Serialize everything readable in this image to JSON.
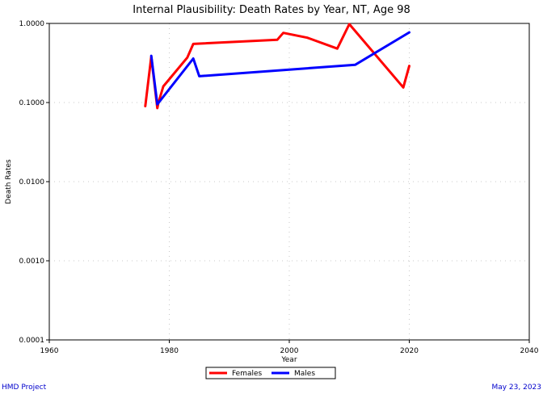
{
  "chart_data": {
    "type": "line",
    "title": "Internal Plausibility: Death Rates by Year, NT, Age 98",
    "xlabel": "Year",
    "ylabel": "Death Rates",
    "x_ticks": [
      "1960",
      "1980",
      "2000",
      "2020",
      "2040"
    ],
    "x_tick_values": [
      1960,
      1980,
      2000,
      2020,
      2040
    ],
    "y_ticks": [
      "0.0001",
      "0.0010",
      "0.0100",
      "0.1000",
      "1.0000"
    ],
    "y_tick_values": [
      0.0001,
      0.001,
      0.01,
      0.1,
      1.0
    ],
    "xlim": [
      1960,
      2040
    ],
    "ylim": [
      0.0001,
      1.0
    ],
    "y_scale": "log",
    "grid": true,
    "legend_position": "bottom-center",
    "series": [
      {
        "name": "Females",
        "color": "#ff0000",
        "x": [
          1976,
          1977,
          1978,
          1978.2,
          1979,
          1983,
          1984,
          1998,
          1999,
          2003,
          2008,
          2010,
          2019,
          2020
        ],
        "y": [
          0.09,
          0.38,
          0.085,
          0.1,
          0.16,
          0.37,
          0.55,
          0.62,
          0.76,
          0.66,
          0.48,
          0.98,
          0.155,
          0.29
        ]
      },
      {
        "name": "Males",
        "color": "#0000ff",
        "x": [
          1977,
          1978,
          1984,
          1985,
          2011,
          2020
        ],
        "y": [
          0.39,
          0.095,
          0.36,
          0.215,
          0.3,
          0.77
        ]
      }
    ]
  },
  "footer": {
    "left": "HMD Project",
    "right": "May 23, 2023"
  }
}
